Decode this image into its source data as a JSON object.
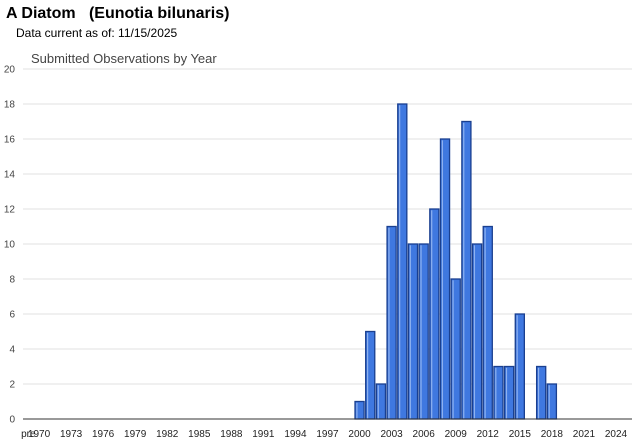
{
  "header": {
    "title": "A Diatom   (Eunotia bilunaris)",
    "data_note": "Data current as of: 11/15/2025"
  },
  "chart_data": {
    "type": "bar",
    "title": "Submitted Observations by Year",
    "xlabel": "",
    "ylabel": "",
    "ylim": [
      0,
      20
    ],
    "y_ticks": [
      0,
      2,
      4,
      6,
      8,
      10,
      12,
      14,
      16,
      18,
      20
    ],
    "x_tick_labels": [
      "pre",
      "1970",
      "1973",
      "1976",
      "1979",
      "1982",
      "1985",
      "1988",
      "1991",
      "1994",
      "1997",
      "2000",
      "2003",
      "2006",
      "2009",
      "2012",
      "2015",
      "2018",
      "2021",
      "2024"
    ],
    "categories": [
      "pre",
      "1970",
      "1971",
      "1972",
      "1973",
      "1974",
      "1975",
      "1976",
      "1977",
      "1978",
      "1979",
      "1980",
      "1981",
      "1982",
      "1983",
      "1984",
      "1985",
      "1986",
      "1987",
      "1988",
      "1989",
      "1990",
      "1991",
      "1992",
      "1993",
      "1994",
      "1995",
      "1996",
      "1997",
      "1998",
      "1999",
      "2000",
      "2001",
      "2002",
      "2003",
      "2004",
      "2005",
      "2006",
      "2007",
      "2008",
      "2009",
      "2010",
      "2011",
      "2012",
      "2013",
      "2014",
      "2015",
      "2016",
      "2017",
      "2018",
      "2019",
      "2020",
      "2021",
      "2022",
      "2023",
      "2024",
      "2025"
    ],
    "values": [
      0,
      0,
      0,
      0,
      0,
      0,
      0,
      0,
      0,
      0,
      0,
      0,
      0,
      0,
      0,
      0,
      0,
      0,
      0,
      0,
      0,
      0,
      0,
      0,
      0,
      0,
      0,
      0,
      0,
      0,
      0,
      1,
      5,
      2,
      11,
      18,
      10,
      10,
      12,
      16,
      8,
      17,
      10,
      11,
      3,
      3,
      6,
      0,
      3,
      2,
      0,
      0,
      0,
      0,
      0,
      0,
      0
    ],
    "grid": true,
    "legend": "none",
    "bar_color": "#3f78e0",
    "bar_edge_color": "#1a3f8f"
  }
}
